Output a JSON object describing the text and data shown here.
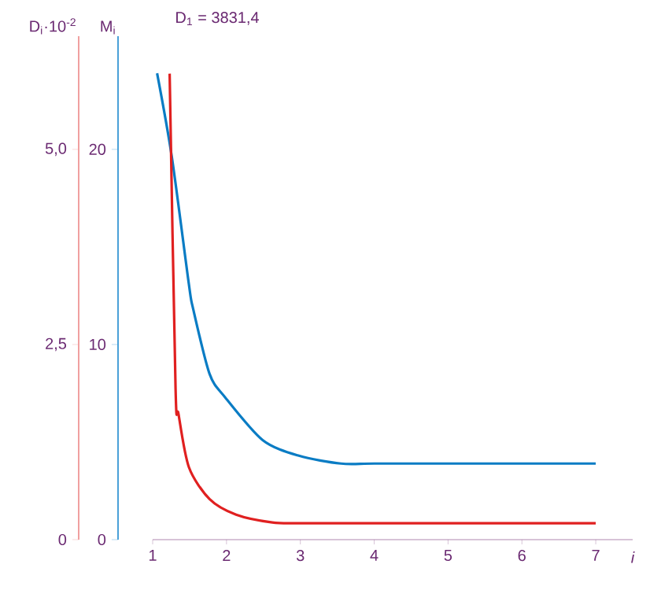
{
  "chart_data": {
    "type": "line",
    "xlabel": "i",
    "ylabel": "D$_{i}$·10$^{-2}$",
    "y2label": "M$_{i}$",
    "annotations": [
      "D$_{1}$ = 3831,4"
    ],
    "xlim": [
      1,
      7.5
    ],
    "xticks": [
      1,
      2,
      3,
      4,
      5,
      6,
      7
    ],
    "ylim": [
      0,
      6.45
    ],
    "yticks": [
      0,
      {
        "value": 2.5,
        "label": "2,5"
      },
      {
        "value": 5,
        "label": "5,0"
      }
    ],
    "y2lim": [
      0,
      25.8
    ],
    "y2ticks": [
      0,
      10,
      20
    ],
    "series": [
      {
        "color": "#0a7cc4",
        "axis": "y2",
        "x": [
          1.06,
          1.26,
          1.49,
          1.55,
          1.77,
          1.98,
          2.49,
          2.98,
          3.55,
          4,
          5,
          6,
          7
        ],
        "values": [
          23.9,
          19.6,
          13.1,
          11.8,
          8.5,
          7.3,
          5.1,
          4.3,
          3.9,
          3.9,
          3.9,
          3.9,
          3.9
        ]
      },
      {
        "color": "#e02020",
        "axis": "y",
        "x": [
          1.23,
          1.31,
          1.35,
          1.49,
          1.77,
          2.13,
          2.62,
          3,
          4,
          5,
          6,
          7
        ],
        "values": [
          5.97,
          1.94,
          1.61,
          0.93,
          0.52,
          0.32,
          0.22,
          0.21,
          0.21,
          0.21,
          0.21,
          0.21
        ]
      }
    ]
  }
}
